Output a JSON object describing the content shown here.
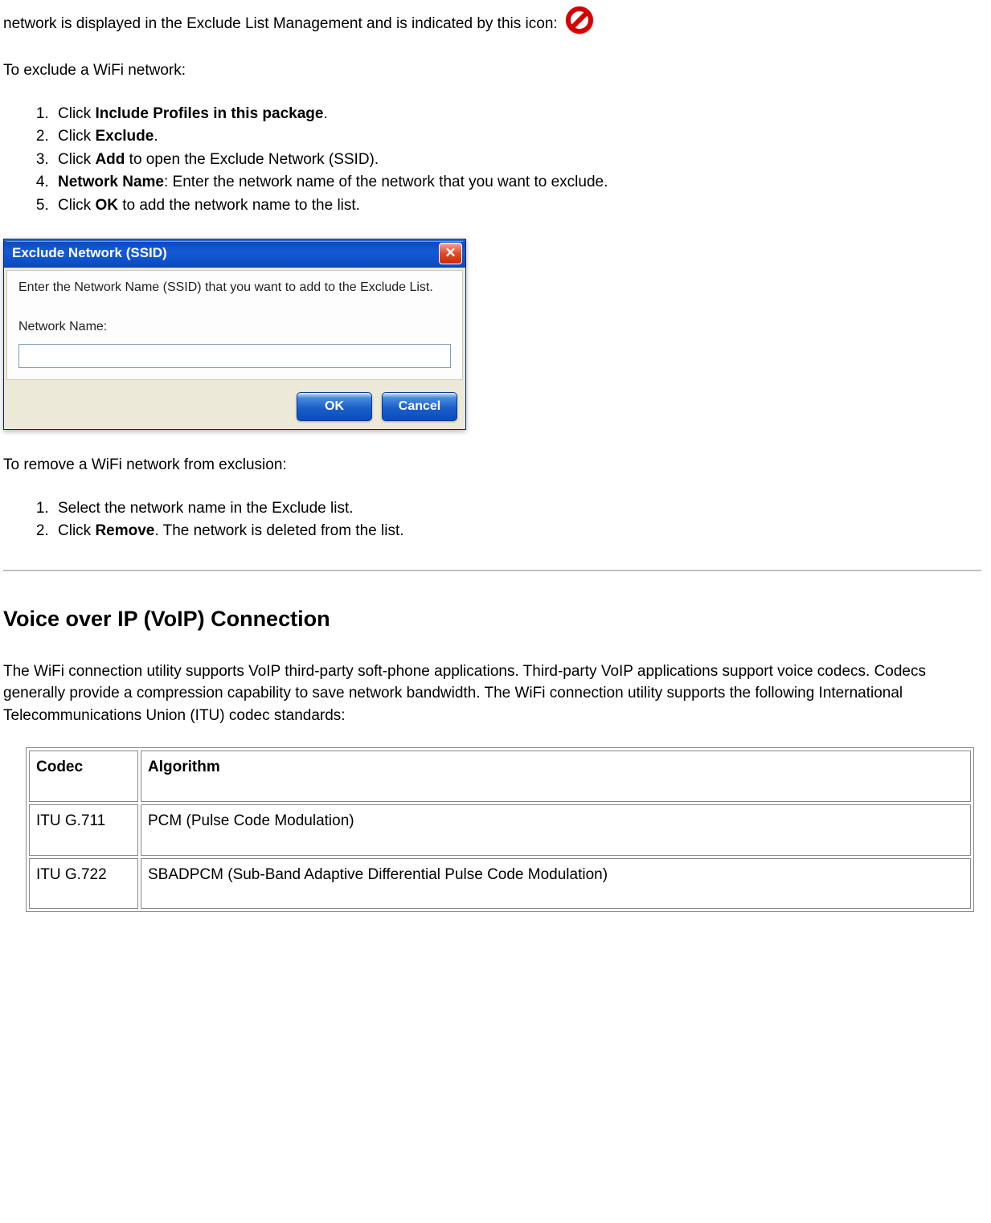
{
  "intro": "network is displayed in the Exclude List Management and is indicated by this icon:",
  "exclude_heading": "To exclude a WiFi network:",
  "exclude_steps": {
    "s1a": "Click ",
    "s1b": "Include Profiles in this package",
    "s1c": ".",
    "s2a": "Click ",
    "s2b": "Exclude",
    "s2c": ".",
    "s3a": "Click ",
    "s3b": "Add",
    "s3c": " to open the Exclude Network (SSID).",
    "s4a": "Network Name",
    "s4b": ": Enter the network name of the network that you want to exclude.",
    "s5a": "Click ",
    "s5b": "OK",
    "s5c": " to add the network name to the list."
  },
  "dialog": {
    "title": "Exclude Network (SSID)",
    "body_text": "Enter the Network Name (SSID) that you want to add to the Exclude List.",
    "label": "Network Name:",
    "ok": "OK",
    "cancel": "Cancel",
    "close_glyph": "✕"
  },
  "remove_heading": "To remove a WiFi network from exclusion:",
  "remove_steps": {
    "r1": "Select the network name in the Exclude list.",
    "r2a": "Click ",
    "r2b": "Remove",
    "r2c": ". The network is deleted from the list."
  },
  "voip": {
    "heading": "Voice over IP (VoIP) Connection",
    "para": "The WiFi connection utility supports VoIP third-party soft-phone applications. Third-party VoIP applications support voice codecs. Codecs generally provide a compression capability to save network bandwidth. The WiFi connection utility supports the following International Telecommunications Union (ITU) codec standards:"
  },
  "table": {
    "h1": "Codec",
    "h2": "Algorithm",
    "r1c1": "ITU G.711",
    "r1c2": "PCM (Pulse Code Modulation)",
    "r2c1": "ITU G.722",
    "r2c2": "SBADPCM (Sub-Band Adaptive Differential Pulse Code Modulation)"
  }
}
